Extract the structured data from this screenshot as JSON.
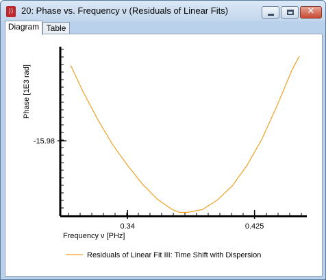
{
  "window": {
    "title": "20: Phase vs. Frequency ν (Residuals of Linear Fits)",
    "icon_glyph": "⟩⟩",
    "close_glyph": "✕"
  },
  "tabs": [
    {
      "label": "Diagram",
      "active": true
    },
    {
      "label": "Table",
      "active": false
    }
  ],
  "chart_data": {
    "type": "line",
    "xlabel": "Frequency ν [PHz]",
    "ylabel": "Phase [1E3 rad]",
    "xlim": [
      0.295,
      0.46
    ],
    "ylim": [
      -16.06,
      -15.88
    ],
    "x_ticks": [
      0.34,
      0.425
    ],
    "x_tick_labels": [
      "0.34",
      "0.425"
    ],
    "y_ticks": [
      -15.98
    ],
    "y_tick_labels": [
      "-15.98"
    ],
    "series": [
      {
        "name": "Residuals of Linear Fit III: Time Shift with Dispersion",
        "color": "#f0a020",
        "x": [
          0.302,
          0.31,
          0.32,
          0.33,
          0.34,
          0.35,
          0.36,
          0.37,
          0.375,
          0.38,
          0.39,
          0.4,
          0.41,
          0.42,
          0.43,
          0.44,
          0.45,
          0.455
        ],
        "y": [
          -15.9,
          -15.927,
          -15.957,
          -15.984,
          -16.006,
          -16.026,
          -16.042,
          -16.053,
          -16.056,
          -16.056,
          -16.053,
          -16.043,
          -16.028,
          -16.006,
          -15.978,
          -15.943,
          -15.905,
          -15.89
        ]
      }
    ],
    "legend": "bottom"
  }
}
